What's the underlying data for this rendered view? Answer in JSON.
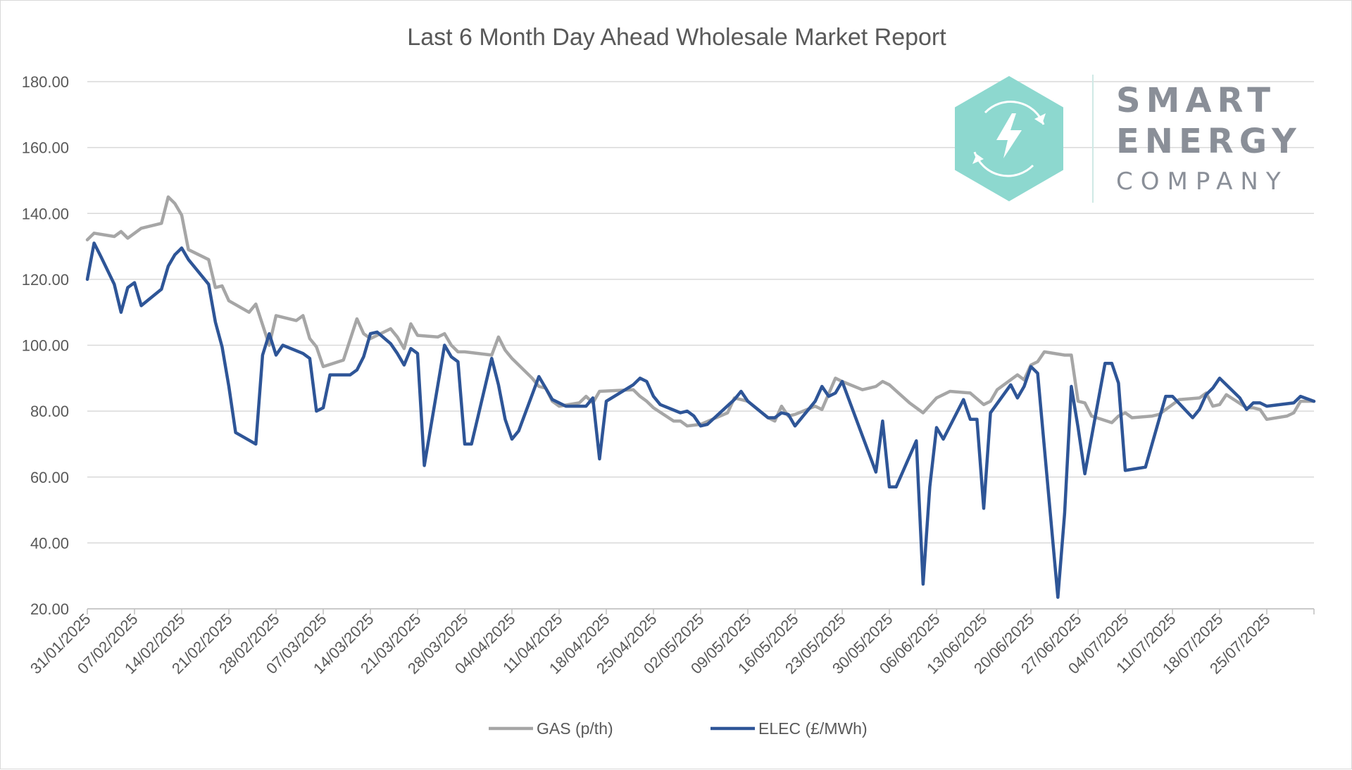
{
  "logo": {
    "line1": "SMART",
    "line2": "ENERGY",
    "line3": "COMPANY",
    "hex_color": "#8dd8cf"
  },
  "chart_data": {
    "type": "line",
    "title": "Last 6 Month Day Ahead Wholesale Market Report",
    "xlabel": "",
    "ylabel": "",
    "ylim": [
      20,
      180
    ],
    "yticks": [
      20,
      40,
      60,
      80,
      100,
      120,
      140,
      160,
      180
    ],
    "ytick_labels": [
      "20.00",
      "40.00",
      "60.00",
      "80.00",
      "100.00",
      "120.00",
      "140.00",
      "160.00",
      "180.00"
    ],
    "x_range": [
      "2025-01-31",
      "2025-08-01"
    ],
    "xtick_labels": [
      "31/01/2025",
      "07/02/2025",
      "14/02/2025",
      "21/02/2025",
      "28/02/2025",
      "07/03/2025",
      "14/03/2025",
      "21/03/2025",
      "28/03/2025",
      "04/04/2025",
      "11/04/2025",
      "18/04/2025",
      "25/04/2025",
      "02/05/2025",
      "09/05/2025",
      "16/05/2025",
      "23/05/2025",
      "30/05/2025",
      "06/06/2025",
      "13/06/2025",
      "20/06/2025",
      "27/06/2025",
      "04/07/2025",
      "11/07/2025",
      "18/07/2025",
      "25/07/2025"
    ],
    "xtick_dates": [
      "2025-01-31",
      "2025-02-07",
      "2025-02-14",
      "2025-02-21",
      "2025-02-28",
      "2025-03-07",
      "2025-03-14",
      "2025-03-21",
      "2025-03-28",
      "2025-04-04",
      "2025-04-11",
      "2025-04-18",
      "2025-04-25",
      "2025-05-02",
      "2025-05-09",
      "2025-05-16",
      "2025-05-23",
      "2025-05-30",
      "2025-06-06",
      "2025-06-13",
      "2025-06-20",
      "2025-06-27",
      "2025-07-04",
      "2025-07-11",
      "2025-07-18",
      "2025-07-25"
    ],
    "grid": true,
    "legend_position": "bottom",
    "series": [
      {
        "name": "GAS (p/th)",
        "color": "#a6a6a6",
        "points": [
          [
            "2025-01-31",
            132.0
          ],
          [
            "2025-02-01",
            134.0
          ],
          [
            "2025-02-04",
            133.0
          ],
          [
            "2025-02-05",
            134.5
          ],
          [
            "2025-02-06",
            132.5
          ],
          [
            "2025-02-08",
            135.5
          ],
          [
            "2025-02-11",
            137.0
          ],
          [
            "2025-02-12",
            145.0
          ],
          [
            "2025-02-13",
            143.0
          ],
          [
            "2025-02-14",
            139.5
          ],
          [
            "2025-02-15",
            129.0
          ],
          [
            "2025-02-18",
            126.0
          ],
          [
            "2025-02-19",
            117.5
          ],
          [
            "2025-02-20",
            118.0
          ],
          [
            "2025-02-21",
            113.5
          ],
          [
            "2025-02-24",
            110.0
          ],
          [
            "2025-02-25",
            112.5
          ],
          [
            "2025-02-27",
            100.0
          ],
          [
            "2025-02-28",
            109.0
          ],
          [
            "2025-03-03",
            107.5
          ],
          [
            "2025-03-04",
            109.0
          ],
          [
            "2025-03-05",
            102.0
          ],
          [
            "2025-03-06",
            99.5
          ],
          [
            "2025-03-07",
            93.5
          ],
          [
            "2025-03-10",
            95.5
          ],
          [
            "2025-03-12",
            108.0
          ],
          [
            "2025-03-13",
            103.5
          ],
          [
            "2025-03-14",
            102.0
          ],
          [
            "2025-03-17",
            105.0
          ],
          [
            "2025-03-18",
            102.5
          ],
          [
            "2025-03-19",
            99.0
          ],
          [
            "2025-03-20",
            106.5
          ],
          [
            "2025-03-21",
            103.0
          ],
          [
            "2025-03-24",
            102.5
          ],
          [
            "2025-03-25",
            103.5
          ],
          [
            "2025-03-26",
            100.0
          ],
          [
            "2025-03-27",
            98.0
          ],
          [
            "2025-03-28",
            98.0
          ],
          [
            "2025-04-01",
            97.0
          ],
          [
            "2025-04-02",
            102.5
          ],
          [
            "2025-04-03",
            98.5
          ],
          [
            "2025-04-04",
            96.0
          ],
          [
            "2025-04-07",
            90.0
          ],
          [
            "2025-04-08",
            87.5
          ],
          [
            "2025-04-09",
            87.0
          ],
          [
            "2025-04-10",
            83.0
          ],
          [
            "2025-04-11",
            81.5
          ],
          [
            "2025-04-14",
            82.5
          ],
          [
            "2025-04-15",
            84.5
          ],
          [
            "2025-04-16",
            82.5
          ],
          [
            "2025-04-17",
            86.0
          ],
          [
            "2025-04-22",
            86.5
          ],
          [
            "2025-04-23",
            84.5
          ],
          [
            "2025-04-24",
            83.0
          ],
          [
            "2025-04-25",
            81.0
          ],
          [
            "2025-04-28",
            77.0
          ],
          [
            "2025-04-29",
            77.0
          ],
          [
            "2025-04-30",
            75.5
          ],
          [
            "2025-05-02",
            76.0
          ],
          [
            "2025-05-06",
            79.5
          ],
          [
            "2025-05-07",
            84.0
          ],
          [
            "2025-05-08",
            83.5
          ],
          [
            "2025-05-09",
            83.0
          ],
          [
            "2025-05-12",
            78.0
          ],
          [
            "2025-05-13",
            77.0
          ],
          [
            "2025-05-14",
            81.5
          ],
          [
            "2025-05-15",
            78.5
          ],
          [
            "2025-05-16",
            79.0
          ],
          [
            "2025-05-19",
            81.5
          ],
          [
            "2025-05-20",
            80.5
          ],
          [
            "2025-05-22",
            90.0
          ],
          [
            "2025-05-23",
            89.0
          ],
          [
            "2025-05-26",
            86.5
          ],
          [
            "2025-05-27",
            87.0
          ],
          [
            "2025-05-28",
            87.5
          ],
          [
            "2025-05-29",
            89.0
          ],
          [
            "2025-05-30",
            88.0
          ],
          [
            "2025-06-02",
            82.5
          ],
          [
            "2025-06-04",
            79.5
          ],
          [
            "2025-06-06",
            84.0
          ],
          [
            "2025-06-07",
            85.0
          ],
          [
            "2025-06-08",
            86.0
          ],
          [
            "2025-06-11",
            85.5
          ],
          [
            "2025-06-13",
            82.0
          ],
          [
            "2025-06-14",
            83.0
          ],
          [
            "2025-06-15",
            86.5
          ],
          [
            "2025-06-18",
            91.0
          ],
          [
            "2025-06-19",
            89.5
          ],
          [
            "2025-06-20",
            94.0
          ],
          [
            "2025-06-21",
            95.0
          ],
          [
            "2025-06-22",
            98.0
          ],
          [
            "2025-06-25",
            97.0
          ],
          [
            "2025-06-26",
            97.0
          ],
          [
            "2025-06-27",
            83.0
          ],
          [
            "2025-06-28",
            82.5
          ],
          [
            "2025-06-29",
            78.5
          ],
          [
            "2025-07-02",
            76.5
          ],
          [
            "2025-07-03",
            78.5
          ],
          [
            "2025-07-04",
            79.5
          ],
          [
            "2025-07-05",
            78.0
          ],
          [
            "2025-07-08",
            78.5
          ],
          [
            "2025-07-09",
            79.0
          ],
          [
            "2025-07-11",
            82.0
          ],
          [
            "2025-07-12",
            83.5
          ],
          [
            "2025-07-15",
            84.0
          ],
          [
            "2025-07-16",
            85.5
          ],
          [
            "2025-07-17",
            81.5
          ],
          [
            "2025-07-18",
            82.0
          ],
          [
            "2025-07-19",
            85.0
          ],
          [
            "2025-07-22",
            81.0
          ],
          [
            "2025-07-23",
            81.0
          ],
          [
            "2025-07-24",
            80.5
          ],
          [
            "2025-07-25",
            77.5
          ],
          [
            "2025-07-28",
            78.5
          ],
          [
            "2025-07-29",
            79.5
          ],
          [
            "2025-07-30",
            83.0
          ],
          [
            "2025-08-01",
            83.0
          ]
        ]
      },
      {
        "name": "ELEC (£/MWh)",
        "color": "#2e5597",
        "points": [
          [
            "2025-01-31",
            120.0
          ],
          [
            "2025-02-01",
            131.0
          ],
          [
            "2025-02-02",
            127.0
          ],
          [
            "2025-02-04",
            118.5
          ],
          [
            "2025-02-05",
            110.0
          ],
          [
            "2025-02-06",
            117.5
          ],
          [
            "2025-02-07",
            119.0
          ],
          [
            "2025-02-08",
            112.0
          ],
          [
            "2025-02-11",
            117.0
          ],
          [
            "2025-02-12",
            124.0
          ],
          [
            "2025-02-13",
            127.5
          ],
          [
            "2025-02-14",
            129.5
          ],
          [
            "2025-02-15",
            126.0
          ],
          [
            "2025-02-18",
            118.5
          ],
          [
            "2025-02-19",
            107.0
          ],
          [
            "2025-02-20",
            99.5
          ],
          [
            "2025-02-21",
            87.5
          ],
          [
            "2025-02-22",
            73.5
          ],
          [
            "2025-02-25",
            70.0
          ],
          [
            "2025-02-26",
            97.0
          ],
          [
            "2025-02-27",
            103.5
          ],
          [
            "2025-02-28",
            97.0
          ],
          [
            "2025-03-01",
            100.0
          ],
          [
            "2025-03-04",
            97.5
          ],
          [
            "2025-03-05",
            96.0
          ],
          [
            "2025-03-06",
            80.0
          ],
          [
            "2025-03-07",
            81.0
          ],
          [
            "2025-03-08",
            91.0
          ],
          [
            "2025-03-11",
            91.0
          ],
          [
            "2025-03-12",
            92.5
          ],
          [
            "2025-03-13",
            96.5
          ],
          [
            "2025-03-14",
            103.5
          ],
          [
            "2025-03-15",
            104.0
          ],
          [
            "2025-03-17",
            100.5
          ],
          [
            "2025-03-18",
            97.5
          ],
          [
            "2025-03-19",
            94.0
          ],
          [
            "2025-03-20",
            99.0
          ],
          [
            "2025-03-21",
            97.5
          ],
          [
            "2025-03-22",
            63.5
          ],
          [
            "2025-03-25",
            100.0
          ],
          [
            "2025-03-26",
            96.5
          ],
          [
            "2025-03-27",
            95.0
          ],
          [
            "2025-03-28",
            70.0
          ],
          [
            "2025-03-29",
            70.0
          ],
          [
            "2025-04-01",
            96.0
          ],
          [
            "2025-04-02",
            88.0
          ],
          [
            "2025-04-03",
            77.5
          ],
          [
            "2025-04-04",
            71.5
          ],
          [
            "2025-04-05",
            74.0
          ],
          [
            "2025-04-08",
            90.5
          ],
          [
            "2025-04-09",
            87.0
          ],
          [
            "2025-04-10",
            83.5
          ],
          [
            "2025-04-12",
            81.5
          ],
          [
            "2025-04-15",
            81.5
          ],
          [
            "2025-04-16",
            84.0
          ],
          [
            "2025-04-17",
            65.5
          ],
          [
            "2025-04-18",
            83.0
          ],
          [
            "2025-04-22",
            88.0
          ],
          [
            "2025-04-23",
            90.0
          ],
          [
            "2025-04-24",
            89.0
          ],
          [
            "2025-04-25",
            84.5
          ],
          [
            "2025-04-26",
            82.0
          ],
          [
            "2025-04-29",
            79.5
          ],
          [
            "2025-04-30",
            80.0
          ],
          [
            "2025-05-01",
            78.5
          ],
          [
            "2025-05-02",
            75.5
          ],
          [
            "2025-05-03",
            76.0
          ],
          [
            "2025-05-07",
            83.5
          ],
          [
            "2025-05-08",
            86.0
          ],
          [
            "2025-05-09",
            83.0
          ],
          [
            "2025-05-12",
            78.0
          ],
          [
            "2025-05-13",
            78.0
          ],
          [
            "2025-05-14",
            79.5
          ],
          [
            "2025-05-15",
            79.0
          ],
          [
            "2025-05-16",
            75.5
          ],
          [
            "2025-05-19",
            83.0
          ],
          [
            "2025-05-20",
            87.5
          ],
          [
            "2025-05-21",
            84.5
          ],
          [
            "2025-05-22",
            85.5
          ],
          [
            "2025-05-23",
            89.0
          ],
          [
            "2025-05-26",
            72.5
          ],
          [
            "2025-05-28",
            61.5
          ],
          [
            "2025-05-29",
            77.0
          ],
          [
            "2025-05-30",
            57.0
          ],
          [
            "2025-05-31",
            57.0
          ],
          [
            "2025-06-03",
            71.0
          ],
          [
            "2025-06-04",
            27.5
          ],
          [
            "2025-06-05",
            57.0
          ],
          [
            "2025-06-06",
            75.0
          ],
          [
            "2025-06-07",
            71.5
          ],
          [
            "2025-06-10",
            83.5
          ],
          [
            "2025-06-11",
            77.5
          ],
          [
            "2025-06-12",
            77.5
          ],
          [
            "2025-06-13",
            50.5
          ],
          [
            "2025-06-14",
            79.5
          ],
          [
            "2025-06-17",
            88.0
          ],
          [
            "2025-06-18",
            84.0
          ],
          [
            "2025-06-19",
            87.5
          ],
          [
            "2025-06-20",
            93.5
          ],
          [
            "2025-06-21",
            91.5
          ],
          [
            "2025-06-24",
            23.5
          ],
          [
            "2025-06-25",
            49.0
          ],
          [
            "2025-06-26",
            87.5
          ],
          [
            "2025-06-27",
            75.0
          ],
          [
            "2025-06-28",
            61.0
          ],
          [
            "2025-07-01",
            94.5
          ],
          [
            "2025-07-02",
            94.5
          ],
          [
            "2025-07-03",
            88.5
          ],
          [
            "2025-07-04",
            62.0
          ],
          [
            "2025-07-07",
            63.0
          ],
          [
            "2025-07-10",
            84.5
          ],
          [
            "2025-07-11",
            84.5
          ],
          [
            "2025-07-14",
            78.0
          ],
          [
            "2025-07-15",
            80.5
          ],
          [
            "2025-07-16",
            85.0
          ],
          [
            "2025-07-17",
            87.0
          ],
          [
            "2025-07-18",
            90.0
          ],
          [
            "2025-07-21",
            84.0
          ],
          [
            "2025-07-22",
            80.5
          ],
          [
            "2025-07-23",
            82.5
          ],
          [
            "2025-07-24",
            82.5
          ],
          [
            "2025-07-25",
            81.5
          ],
          [
            "2025-07-29",
            82.5
          ],
          [
            "2025-07-30",
            84.5
          ],
          [
            "2025-08-01",
            83.0
          ]
        ]
      }
    ]
  }
}
